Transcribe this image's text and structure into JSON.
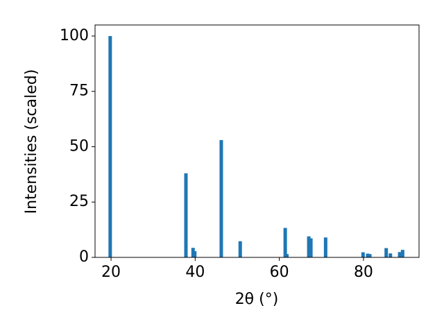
{
  "chart_data": {
    "type": "bar",
    "xlabel": "2θ (°)",
    "ylabel": "Intensities (scaled)",
    "x": [
      19.8,
      37.8,
      39.5,
      39.9,
      46.2,
      50.7,
      61.4,
      61.8,
      67.0,
      67.5,
      71.0,
      79.9,
      81.0,
      81.5,
      85.4,
      86.4,
      88.6,
      89.3
    ],
    "values": [
      100,
      38,
      4.3,
      2.8,
      53,
      7.3,
      13.3,
      1.5,
      9.5,
      8.6,
      9,
      2.3,
      1.7,
      1.5,
      4.2,
      1.8,
      2.4,
      3.4
    ],
    "color": "#1f77b4",
    "xlim": [
      16.2,
      93.2
    ],
    "xticks": [
      20,
      40,
      60,
      80
    ],
    "ylim": [
      0,
      105
    ],
    "yticks": [
      0,
      25,
      50,
      75,
      100
    ]
  }
}
